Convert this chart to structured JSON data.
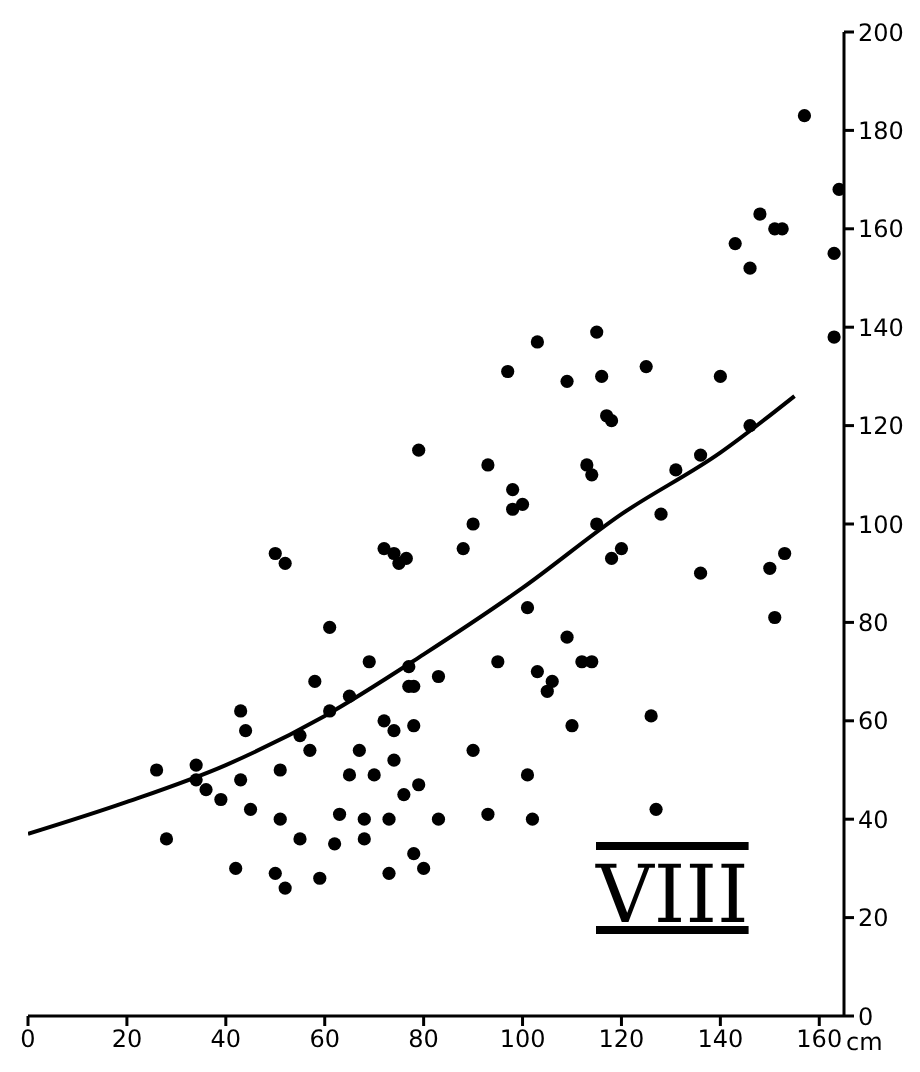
{
  "chart_data": {
    "type": "scatter",
    "xlabel": "cm",
    "annotations": [
      "VIII"
    ],
    "xlim": [
      0,
      165
    ],
    "ylim": [
      0,
      200
    ],
    "xticks": [
      0,
      20,
      40,
      60,
      80,
      100,
      120,
      140,
      160
    ],
    "yticks": [
      0,
      20,
      40,
      60,
      80,
      100,
      120,
      140,
      160,
      180,
      200
    ],
    "marker": "circle",
    "series": [
      {
        "color": "#000000",
        "x": [
          26,
          28,
          34,
          34,
          36,
          39,
          43,
          44,
          43,
          45,
          42,
          50,
          52,
          51,
          51,
          50,
          52,
          55,
          57,
          61,
          58,
          61,
          65,
          55,
          59,
          62,
          63,
          65,
          67,
          68,
          68,
          69,
          70,
          72,
          74,
          75,
          76.5,
          72,
          74,
          74,
          77,
          77,
          78,
          78,
          76,
          79,
          73,
          73,
          78,
          80,
          83,
          83,
          79,
          157,
          164,
          148,
          151,
          152.5,
          143,
          146,
          163,
          163,
          103,
          115,
          97,
          109,
          116,
          125,
          140,
          117,
          118,
          146,
          93,
          113,
          114,
          131,
          136,
          98,
          90,
          88,
          98,
          100,
          115,
          128,
          118,
          120,
          136,
          150,
          153,
          151,
          101,
          109,
          95,
          103,
          106,
          105,
          112,
          114,
          110,
          126,
          90,
          101,
          93,
          102,
          127
        ],
        "values": [
          50,
          36,
          51,
          48,
          46,
          44,
          62,
          58,
          48,
          42,
          30,
          94,
          92,
          50,
          40,
          29,
          26,
          57,
          54,
          79,
          68,
          62,
          65,
          36,
          28,
          35,
          41,
          49,
          54,
          40,
          36,
          72,
          49,
          95,
          94,
          92,
          93,
          60,
          58,
          52,
          71,
          67,
          67,
          59,
          45,
          47,
          40,
          29,
          33,
          30,
          69,
          40,
          115,
          183,
          168,
          163,
          160,
          160,
          157,
          152,
          155,
          138,
          137,
          139,
          131,
          129,
          130,
          132,
          130,
          122,
          121,
          120,
          112,
          112,
          110,
          111,
          114,
          107,
          100,
          95,
          103,
          104,
          100,
          102,
          93,
          95,
          90,
          91,
          94,
          81,
          83,
          77,
          72,
          70,
          68,
          66,
          72,
          72,
          59,
          61,
          54,
          49,
          41,
          40,
          42
        ]
      },
      {
        "type": "line",
        "color": "#000000",
        "marker": "none",
        "line_style": "solid",
        "x": [
          0,
          20,
          40,
          60,
          80,
          100,
          120,
          140,
          155
        ],
        "values": [
          37,
          43.5,
          51,
          61,
          73.5,
          87,
          102,
          114.5,
          126
        ]
      }
    ]
  }
}
